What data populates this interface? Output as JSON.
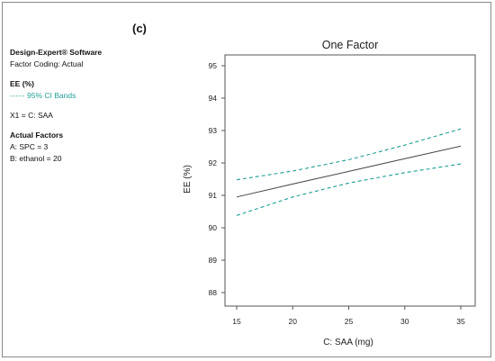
{
  "panel_label": "(c)",
  "sidebar": {
    "software": "Design-Expert® Software",
    "coding": "Factor Coding: Actual",
    "response": "EE (%)",
    "ci_dash": "-----",
    "ci_label": "95% CI Bands",
    "x1": "X1 = C: SAA",
    "actual_factors_heading": "Actual Factors",
    "factor_a": "A: SPC = 3",
    "factor_b": "B: ethanol = 20"
  },
  "colors": {
    "fit": "#444444",
    "ci": "#1f9e96",
    "frame": "#8a8a8a"
  },
  "chart_data": {
    "type": "line",
    "title": "One Factor",
    "xlabel": "C: SAA (mg)",
    "ylabel": "EE (%)",
    "xlim": [
      15,
      35
    ],
    "ylim": [
      88,
      95
    ],
    "xticks": [
      15,
      20,
      25,
      30,
      35
    ],
    "yticks": [
      88,
      89,
      90,
      91,
      92,
      93,
      94,
      95
    ],
    "x": [
      15,
      20,
      25,
      30,
      35
    ],
    "series": [
      {
        "key": "fit",
        "style": "solid",
        "values": [
          90.95,
          91.35,
          91.74,
          92.13,
          92.52
        ]
      },
      {
        "key": "upper",
        "style": "dashed",
        "values": [
          91.48,
          91.75,
          92.1,
          92.55,
          93.05
        ]
      },
      {
        "key": "lower",
        "style": "dashed",
        "values": [
          90.38,
          90.95,
          91.38,
          91.7,
          91.97
        ]
      }
    ]
  }
}
